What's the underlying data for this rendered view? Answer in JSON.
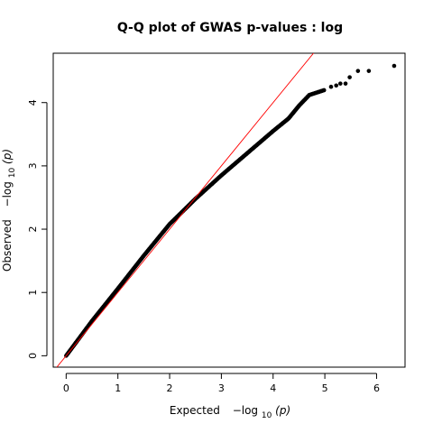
{
  "chart_data": {
    "type": "scatter",
    "title": "Q-Q plot of GWAS p-values : log",
    "xlabel": {
      "prefix": "Expected",
      "math": "−log",
      "sub": "10",
      "arg": "(p)"
    },
    "ylabel": {
      "prefix": "Observed",
      "math": "−log",
      "sub": "10",
      "arg": "(p)"
    },
    "xlim": [
      -0.25,
      6.55
    ],
    "ylim": [
      -0.18,
      4.78
    ],
    "xticks": [
      "0",
      "1",
      "2",
      "3",
      "4",
      "5",
      "6"
    ],
    "yticks": [
      "0",
      "1",
      "2",
      "3",
      "4"
    ],
    "reference_line": {
      "slope": 1,
      "intercept": 0,
      "color": "#ff0000"
    },
    "point_color": "#000000",
    "curve": [
      {
        "x": 0.0,
        "y": 0.0
      },
      {
        "x": 0.5,
        "y": 0.55
      },
      {
        "x": 1.0,
        "y": 1.06
      },
      {
        "x": 1.5,
        "y": 1.58
      },
      {
        "x": 2.0,
        "y": 2.08
      },
      {
        "x": 2.5,
        "y": 2.48
      },
      {
        "x": 3.0,
        "y": 2.85
      },
      {
        "x": 3.5,
        "y": 3.2
      },
      {
        "x": 4.0,
        "y": 3.55
      },
      {
        "x": 4.3,
        "y": 3.75
      },
      {
        "x": 4.5,
        "y": 3.95
      },
      {
        "x": 4.7,
        "y": 4.12
      },
      {
        "x": 5.0,
        "y": 4.2
      }
    ],
    "tail_points": [
      {
        "x": 5.12,
        "y": 4.25
      },
      {
        "x": 5.22,
        "y": 4.27
      },
      {
        "x": 5.3,
        "y": 4.3
      },
      {
        "x": 5.4,
        "y": 4.3
      },
      {
        "x": 5.48,
        "y": 4.4
      },
      {
        "x": 5.64,
        "y": 4.5
      },
      {
        "x": 5.85,
        "y": 4.5
      },
      {
        "x": 6.34,
        "y": 4.58
      }
    ]
  }
}
